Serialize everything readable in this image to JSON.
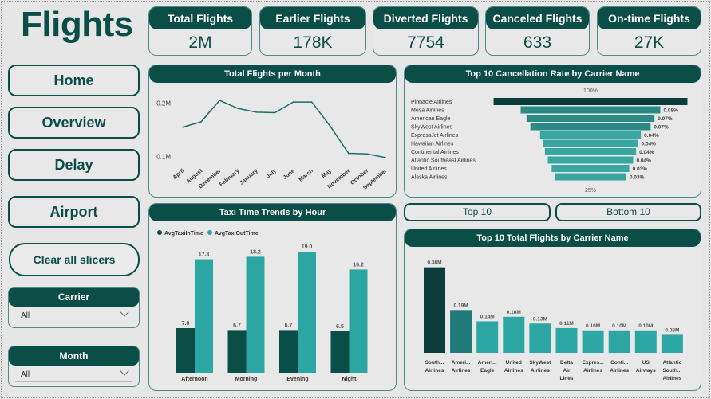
{
  "app": {
    "title": "Flights"
  },
  "kpis": [
    {
      "label": "Total Flights",
      "value": "2M"
    },
    {
      "label": "Earlier Flights",
      "value": "178K"
    },
    {
      "label": "Diverted Flights",
      "value": "7754"
    },
    {
      "label": "Canceled Flights",
      "value": "633"
    },
    {
      "label": "On-time Flights",
      "value": "27K"
    }
  ],
  "nav": {
    "home": "Home",
    "overview": "Overview",
    "delay": "Delay",
    "airport": "Airport"
  },
  "clear_label": "Clear all slicers",
  "slicers": {
    "carrier": {
      "label": "Carrier",
      "value": "All"
    },
    "month": {
      "label": "Month",
      "value": "All"
    }
  },
  "toggle": {
    "top": "Top 10",
    "bottom": "Bottom 10"
  },
  "colors": {
    "dark": "#0b4d47",
    "teal": "#2ca6a2",
    "accent": "#4d8a84"
  },
  "chart_data": [
    {
      "type": "line",
      "title": "Total Flights per Month",
      "categories": [
        "April",
        "August",
        "December",
        "February",
        "January",
        "July",
        "June",
        "March",
        "May",
        "November",
        "October",
        "September"
      ],
      "values": [
        0.155,
        0.165,
        0.205,
        0.19,
        0.183,
        0.182,
        0.202,
        0.202,
        0.157,
        0.106,
        0.105,
        0.098
      ],
      "ylim": [
        0.08,
        0.22
      ],
      "yticks": [
        "0.2M",
        "0.1M"
      ],
      "ytick_values": [
        0.2,
        0.1
      ],
      "grid": false
    },
    {
      "type": "bar",
      "title": "Top 10 Cancellation Rate by Carrier Name",
      "categories": [
        "Pinnacle Airlines",
        "Mesa Airlines",
        "American Eagle",
        "SkyWest Airlines",
        "ExpressJet Airlines",
        "Hawaiian Airlines",
        "Continental Airlines",
        "Atlantic Southeast Airlines",
        "United Airlines",
        "Alaska Airlines"
      ],
      "values": [
        100,
        72,
        66,
        62,
        52,
        49,
        47,
        44,
        40,
        37
      ],
      "labels": [
        "",
        "0.08%",
        "0.07%",
        "0.07%",
        "0.04%",
        "0.04%",
        "0.04%",
        "0.04%",
        "0.03%",
        "0.03%"
      ],
      "top_label": "100%",
      "bottom_label": "25%"
    },
    {
      "type": "bar",
      "title": "Taxi Time Trends by Hour",
      "categories": [
        "Afternoon",
        "Morning",
        "Evening",
        "Night"
      ],
      "series": [
        {
          "name": "AvgTaxiInTime",
          "values": [
            7.0,
            6.7,
            6.7,
            6.5
          ],
          "color": "#0b4d47"
        },
        {
          "name": "AvgTaxiOutTime",
          "values": [
            17.8,
            18.2,
            19.0,
            16.2
          ],
          "color": "#2ca6a2"
        }
      ],
      "ylim": [
        0,
        20
      ],
      "legend": "top-left"
    },
    {
      "type": "bar",
      "title": "Top 10 Total Flights by Carrier Name",
      "categories": [
        [
          "South...",
          "Airlines"
        ],
        [
          "Ameri...",
          "Airlines"
        ],
        [
          "Ameri...",
          "Eagle"
        ],
        [
          "United",
          "Airlines"
        ],
        [
          "SkyWest",
          "Airlines"
        ],
        [
          "Delta",
          "Air",
          "Lines"
        ],
        [
          "Expres...",
          "Airlines"
        ],
        [
          "Conti...",
          "Airlines"
        ],
        [
          "US",
          "Airways"
        ],
        [
          "Atlantic",
          "South...",
          "Airlines"
        ]
      ],
      "values": [
        0.38,
        0.19,
        0.14,
        0.16,
        0.13,
        0.11,
        0.1,
        0.1,
        0.1,
        0.08
      ],
      "labels": [
        "0.38M",
        "0.19M",
        "0.14M",
        "0.16M",
        "0.13M",
        "0.11M",
        "0.10M",
        "0.10M",
        "0.10M",
        "0.08M"
      ],
      "colors": [
        "#0b3d3a",
        "#1f7a78",
        "#2ca6a2",
        "#2ca6a2",
        "#2ca6a2",
        "#2ca6a2",
        "#2ca6a2",
        "#2ca6a2",
        "#2ca6a2",
        "#2ca6a2"
      ],
      "ylim": [
        0,
        0.4
      ]
    }
  ]
}
